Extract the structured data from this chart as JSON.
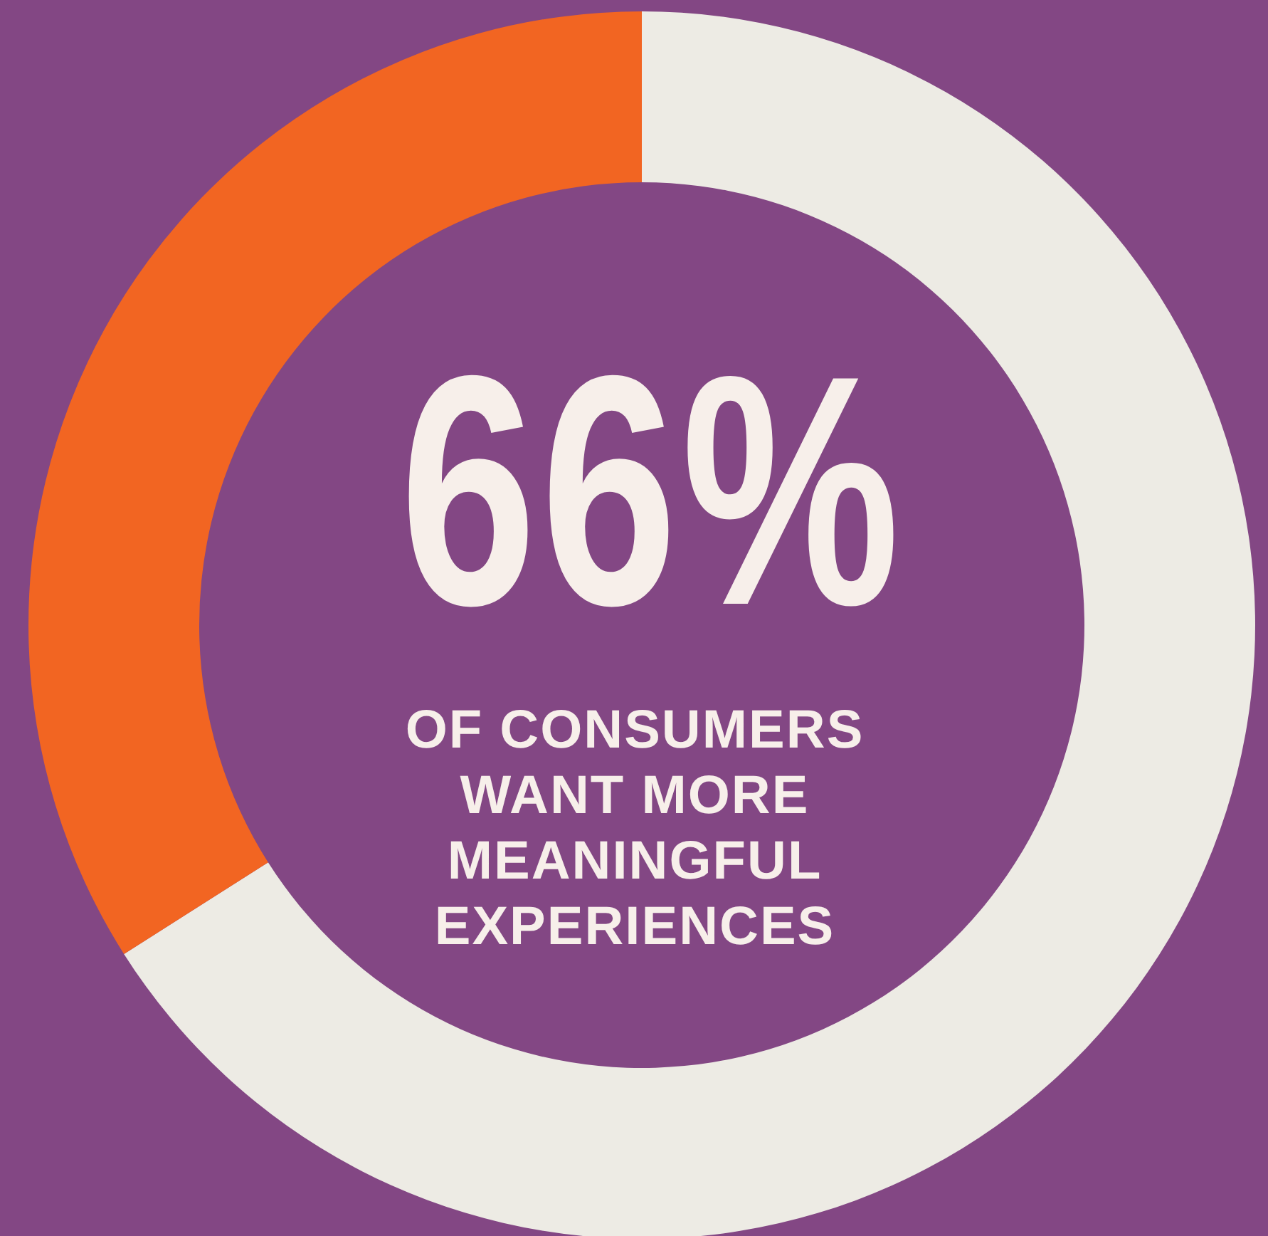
{
  "chart_data": {
    "type": "donut",
    "categories": [
      null,
      null
    ],
    "values": [
      66,
      34
    ],
    "colors": [
      "#edebe4",
      "#f26522"
    ],
    "annotations": [
      "66%",
      "OF CONSUMERS WANT MORE MEANINGFUL EXPERIENCES"
    ]
  }
}
